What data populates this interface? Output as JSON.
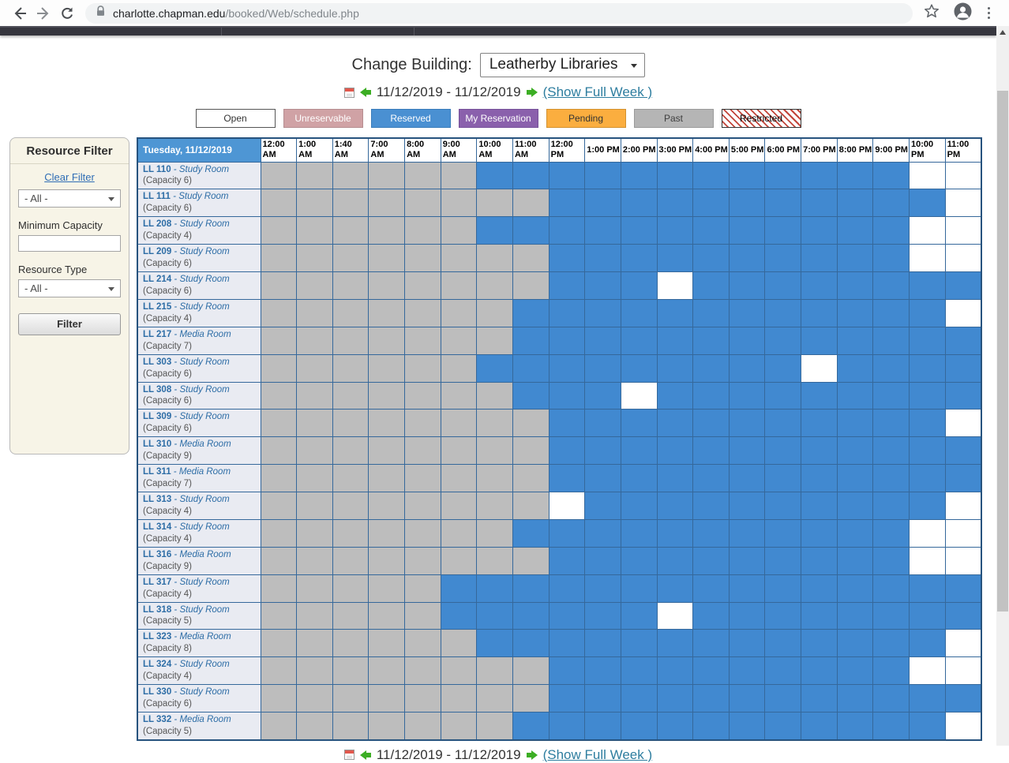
{
  "browser": {
    "url_host": "charlotte.chapman.edu",
    "url_path": "/booked/Web/schedule.php"
  },
  "header": {
    "change_building_label": "Change Building:",
    "building_selected": "Leatherby Libraries"
  },
  "date_nav": {
    "range": "11/12/2019 - 11/12/2019",
    "show_full_week": "(Show Full Week )"
  },
  "legend": [
    {
      "label": "Open",
      "bg": "#ffffff",
      "fg": "#333333",
      "border": "#555555",
      "pattern": "none"
    },
    {
      "label": "Unreservable",
      "bg": "#d0a2a5",
      "fg": "#ffffff",
      "border": "#b58d90",
      "pattern": "none"
    },
    {
      "label": "Reserved",
      "bg": "#4a90d2",
      "fg": "#ffffff",
      "border": "#3a7cba",
      "pattern": "none"
    },
    {
      "label": "My Reservation",
      "bg": "#8a60ac",
      "fg": "#ffffff",
      "border": "#76519a",
      "pattern": "none"
    },
    {
      "label": "Pending",
      "bg": "#fbae3f",
      "fg": "#333333",
      "border": "#d2912f",
      "pattern": "none"
    },
    {
      "label": "Past",
      "bg": "#b5b5b5",
      "fg": "#3f3f3f",
      "border": "#9a9a9a",
      "pattern": "none"
    },
    {
      "label": "Restricted",
      "bg": "#ffffff",
      "fg": "#000000",
      "border": "#333333",
      "pattern": "stripes",
      "stripe_color": "#c2453a"
    }
  ],
  "sidebar": {
    "title": "Resource Filter",
    "clear_filter": "Clear Filter",
    "resource_select_value": "- All -",
    "min_capacity_label": "Minimum Capacity",
    "min_capacity_value": "",
    "resource_type_label": "Resource Type",
    "resource_type_value": "- All -",
    "filter_button": "Filter"
  },
  "schedule": {
    "day_header": "Tuesday, 11/12/2019",
    "times": [
      "12:00 AM",
      "1:00 AM",
      "1:40 AM",
      "7:00 AM",
      "8:00 AM",
      "9:00 AM",
      "10:00 AM",
      "11:00 AM",
      "12:00 PM",
      "1:00 PM",
      "2:00 PM",
      "3:00 PM",
      "4:00 PM",
      "5:00 PM",
      "6:00 PM",
      "7:00 PM",
      "8:00 PM",
      "9:00 PM",
      "10:00 PM",
      "11:00 PM"
    ],
    "cell_states": {
      "P": "past",
      "R": "reserved",
      "O": "open"
    },
    "state_colors": {
      "past": "#bdbdbd",
      "reserved": "#4189d0",
      "open": "#ffffff"
    },
    "rooms": [
      {
        "code": "LL 110",
        "type": "Study Room",
        "capacity": "(Capacity 6)",
        "cells": "PPPPPPRRRRRRRRRRRROO"
      },
      {
        "code": "LL 111",
        "type": "Study Room",
        "capacity": "(Capacity 6)",
        "cells": "PPPPPPPPRRRRRRRRRRRO"
      },
      {
        "code": "LL 208",
        "type": "Study Room",
        "capacity": "(Capacity 4)",
        "cells": "PPPPPPRRRRRRRRRRRROO"
      },
      {
        "code": "LL 209",
        "type": "Study Room",
        "capacity": "(Capacity 6)",
        "cells": "PPPPPPPPRRRRRRRRRROO"
      },
      {
        "code": "LL 214",
        "type": "Study Room",
        "capacity": "(Capacity 6)",
        "cells": "PPPPPPPPRRRORRRRRRRR"
      },
      {
        "code": "LL 215",
        "type": "Study Room",
        "capacity": "(Capacity 4)",
        "cells": "PPPPPPPRRRRRRRRRRRRO"
      },
      {
        "code": "LL 217",
        "type": "Media Room",
        "capacity": "(Capacity 7)",
        "cells": "PPPPPPPRRRRRRRRRRRRR"
      },
      {
        "code": "LL 303",
        "type": "Study Room",
        "capacity": "(Capacity 6)",
        "cells": "PPPPPPRRRRRRRRRORRRR"
      },
      {
        "code": "LL 308",
        "type": "Study Room",
        "capacity": "(Capacity 6)",
        "cells": "PPPPPPPRRRORRRRRRRRR"
      },
      {
        "code": "LL 309",
        "type": "Study Room",
        "capacity": "(Capacity 6)",
        "cells": "PPPPPPPPRRRRRRRRRRRO"
      },
      {
        "code": "LL 310",
        "type": "Media Room",
        "capacity": "(Capacity 9)",
        "cells": "PPPPPPPPRRRRRRRRRRRR"
      },
      {
        "code": "LL 311",
        "type": "Media Room",
        "capacity": "(Capacity 7)",
        "cells": "PPPPPPPPRRRRRRRRRRRR"
      },
      {
        "code": "LL 313",
        "type": "Study Room",
        "capacity": "(Capacity 4)",
        "cells": "PPPPPPPPORRRRRRRRRRO"
      },
      {
        "code": "LL 314",
        "type": "Study Room",
        "capacity": "(Capacity 4)",
        "cells": "PPPPPPPRRRRRRRRRRROO"
      },
      {
        "code": "LL 316",
        "type": "Media Room",
        "capacity": "(Capacity 9)",
        "cells": "PPPPPPPPRRRRRRRRRROO"
      },
      {
        "code": "LL 317",
        "type": "Study Room",
        "capacity": "(Capacity 4)",
        "cells": "PPPPPRRRRRRRRRRRRRRR"
      },
      {
        "code": "LL 318",
        "type": "Study Room",
        "capacity": "(Capacity 5)",
        "cells": "PPPPPRRRRRRORRRRRRRR"
      },
      {
        "code": "LL 323",
        "type": "Media Room",
        "capacity": "(Capacity 8)",
        "cells": "PPPPPPRRRRRRRRRRRRRO"
      },
      {
        "code": "LL 324",
        "type": "Study Room",
        "capacity": "(Capacity 4)",
        "cells": "PPPPPPPPRRRRRRRRRROO"
      },
      {
        "code": "LL 330",
        "type": "Study Room",
        "capacity": "(Capacity 6)",
        "cells": "PPPPPPPPRRRRRRRRRRRR"
      },
      {
        "code": "LL 332",
        "type": "Media Room",
        "capacity": "(Capacity 5)",
        "cells": "PPPPPPPRRRRRRRRRRRRO"
      }
    ]
  }
}
